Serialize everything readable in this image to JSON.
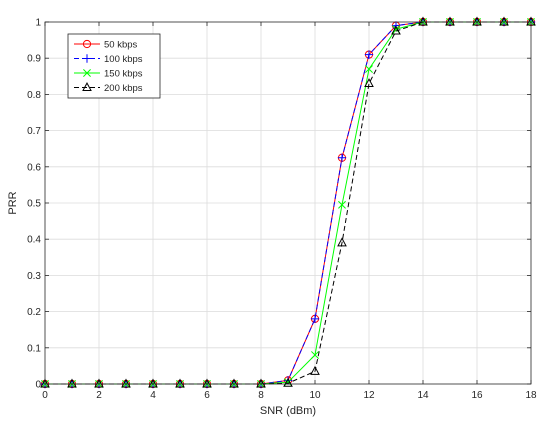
{
  "chart_data": {
    "type": "line",
    "xlabel": "SNR (dBm)",
    "ylabel": "PRR",
    "xlim": [
      0,
      18
    ],
    "ylim": [
      0,
      1
    ],
    "xticks": [
      "0",
      "2",
      "4",
      "6",
      "8",
      "10",
      "12",
      "14",
      "16",
      "18"
    ],
    "yticks": [
      "0",
      "0.1",
      "0.2",
      "0.3",
      "0.4",
      "0.5",
      "0.6",
      "0.7",
      "0.8",
      "0.9",
      "1"
    ],
    "grid": true,
    "legend_position": "top-left",
    "x": [
      0,
      1,
      2,
      3,
      4,
      5,
      6,
      7,
      8,
      9,
      10,
      11,
      12,
      13,
      14,
      15,
      16,
      17,
      18
    ],
    "series": [
      {
        "name": "50 kbps",
        "color": "#ff0000",
        "marker": "circle",
        "dash": "solid",
        "values": [
          0,
          0,
          0,
          0,
          0,
          0,
          0,
          0,
          0,
          0.01,
          0.18,
          0.625,
          0.91,
          0.99,
          1,
          1,
          1,
          1,
          1
        ]
      },
      {
        "name": "100 kbps",
        "color": "#0000ff",
        "marker": "plus",
        "dash": "dashed",
        "values": [
          0,
          0,
          0,
          0,
          0,
          0,
          0,
          0,
          0,
          0.01,
          0.18,
          0.625,
          0.91,
          0.99,
          1,
          1,
          1,
          1,
          1
        ]
      },
      {
        "name": "150 kbps",
        "color": "#00ff00",
        "marker": "x",
        "dash": "solid",
        "values": [
          0,
          0,
          0,
          0,
          0,
          0,
          0,
          0,
          0,
          0.005,
          0.08,
          0.495,
          0.87,
          0.98,
          1,
          1,
          1,
          1,
          1
        ]
      },
      {
        "name": "200 kbps",
        "color": "#000000",
        "marker": "triangle",
        "dash": "dashed",
        "values": [
          0,
          0,
          0,
          0,
          0,
          0,
          0,
          0,
          0,
          0.002,
          0.035,
          0.39,
          0.83,
          0.975,
          1,
          1,
          1,
          1,
          1
        ]
      }
    ]
  }
}
